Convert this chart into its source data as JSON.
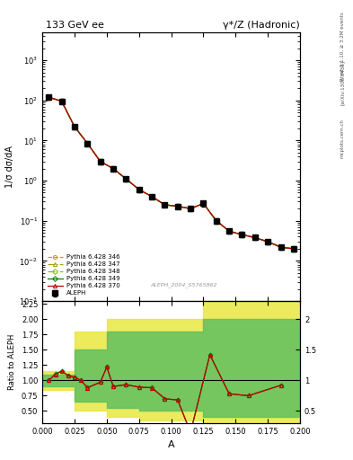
{
  "title_left": "133 GeV ee",
  "title_right": "γ*/Z (Hadronic)",
  "ylabel_main": "1/σ dσ/dA",
  "ylabel_ratio": "Ratio to ALEPH",
  "xlabel": "A",
  "watermark": "ALEPH_2004_S5765862",
  "rivet_label": "Rivet 3.1.10, ≥ 3.2M events",
  "arxiv_label": "[arXiv:1306.3436]",
  "mcplots_label": "mcplots.cern.ch",
  "aleph_x": [
    0.005,
    0.015,
    0.025,
    0.035,
    0.045,
    0.055,
    0.065,
    0.075,
    0.085,
    0.095,
    0.105,
    0.115,
    0.125,
    0.135,
    0.145,
    0.155,
    0.165,
    0.175,
    0.185,
    0.195
  ],
  "aleph_y": [
    120.0,
    95.0,
    22.0,
    8.5,
    3.0,
    2.0,
    1.1,
    0.6,
    0.4,
    0.25,
    0.23,
    0.2,
    0.27,
    0.1,
    0.055,
    0.045,
    0.038,
    0.03,
    0.022,
    0.02
  ],
  "aleph_yerr": [
    15.0,
    12.0,
    3.0,
    1.0,
    0.4,
    0.25,
    0.15,
    0.08,
    0.05,
    0.03,
    0.03,
    0.03,
    0.04,
    0.015,
    0.008,
    0.007,
    0.005,
    0.004,
    0.003,
    0.003
  ],
  "mc_x": [
    0.005,
    0.015,
    0.025,
    0.035,
    0.045,
    0.055,
    0.065,
    0.075,
    0.085,
    0.095,
    0.105,
    0.115,
    0.125,
    0.135,
    0.145,
    0.155,
    0.165,
    0.175,
    0.185,
    0.195
  ],
  "mc_y_346": [
    120.0,
    95.0,
    22.0,
    8.5,
    3.0,
    2.0,
    1.1,
    0.6,
    0.4,
    0.25,
    0.23,
    0.2,
    0.27,
    0.1,
    0.055,
    0.045,
    0.038,
    0.03,
    0.022,
    0.02
  ],
  "mc_y_347": [
    120.0,
    95.0,
    22.0,
    8.5,
    3.0,
    2.0,
    1.1,
    0.6,
    0.4,
    0.25,
    0.23,
    0.2,
    0.27,
    0.1,
    0.055,
    0.045,
    0.038,
    0.03,
    0.022,
    0.02
  ],
  "mc_y_348": [
    120.0,
    95.0,
    22.0,
    8.5,
    3.0,
    2.0,
    1.1,
    0.6,
    0.4,
    0.25,
    0.23,
    0.2,
    0.27,
    0.1,
    0.055,
    0.045,
    0.038,
    0.03,
    0.022,
    0.02
  ],
  "mc_y_349": [
    120.0,
    95.0,
    22.0,
    8.5,
    3.0,
    2.0,
    1.1,
    0.6,
    0.4,
    0.25,
    0.23,
    0.2,
    0.27,
    0.1,
    0.055,
    0.045,
    0.038,
    0.03,
    0.022,
    0.02
  ],
  "mc_y_370": [
    120.0,
    95.0,
    22.0,
    8.5,
    3.0,
    2.0,
    1.1,
    0.6,
    0.4,
    0.25,
    0.23,
    0.2,
    0.27,
    0.1,
    0.055,
    0.045,
    0.038,
    0.03,
    0.022,
    0.02
  ],
  "ratio_x": [
    0.005,
    0.01,
    0.015,
    0.02,
    0.025,
    0.03,
    0.035,
    0.04,
    0.045,
    0.05,
    0.055,
    0.06,
    0.065,
    0.07,
    0.075,
    0.08,
    0.085,
    0.09,
    0.095,
    0.1,
    0.105,
    0.11,
    0.115,
    0.125,
    0.135,
    0.145,
    0.155,
    0.165,
    0.175,
    0.185,
    0.195
  ],
  "ratio_y_349": [
    1.0,
    1.1,
    1.15,
    1.1,
    1.05,
    1.02,
    0.88,
    0.95,
    1.0,
    1.25,
    0.92,
    0.95,
    0.92,
    0.9,
    0.88,
    0.85,
    0.85,
    0.72,
    0.72,
    0.7,
    0.65,
    0.15,
    1.4,
    1.4,
    0.78,
    0.78,
    0.75,
    0.75,
    0.92,
    0.92,
    0.92
  ],
  "ratio_y_370": [
    0.85,
    1.0,
    1.1,
    1.15,
    1.1,
    1.05,
    1.02,
    0.88,
    0.95,
    1.0,
    1.25,
    0.92,
    0.95,
    0.92,
    0.9,
    0.88,
    0.85,
    0.85,
    0.72,
    0.72,
    0.7,
    0.65,
    0.15,
    1.4,
    1.4,
    0.78,
    0.78,
    0.75,
    0.75,
    0.92,
    0.92
  ],
  "band_yellow_x": [
    0.0,
    0.025,
    0.025,
    0.05,
    0.05,
    0.075,
    0.075,
    0.1,
    0.1,
    0.125,
    0.125,
    0.2
  ],
  "band_yellow_lo": [
    0.85,
    0.85,
    0.5,
    0.5,
    0.5,
    0.5,
    0.5,
    0.5,
    0.5,
    0.5,
    0.3,
    0.3
  ],
  "band_yellow_hi": [
    1.15,
    1.15,
    1.8,
    1.8,
    2.0,
    2.0,
    2.0,
    2.0,
    2.0,
    2.0,
    2.0,
    2.0
  ],
  "band_green_x": [
    0.0,
    0.025,
    0.025,
    0.05,
    0.05,
    0.075,
    0.075,
    0.1,
    0.1,
    0.125,
    0.125,
    0.2
  ],
  "band_green_lo": [
    0.9,
    0.9,
    0.65,
    0.65,
    0.65,
    0.65,
    0.65,
    0.65,
    0.65,
    0.65,
    0.4,
    0.4
  ],
  "band_green_hi": [
    1.1,
    1.1,
    1.5,
    1.5,
    1.8,
    1.8,
    1.8,
    1.8,
    1.8,
    1.8,
    1.8,
    1.8
  ],
  "color_346": "#c8a000",
  "color_347": "#a0a000",
  "color_348": "#80c000",
  "color_349": "#008000",
  "color_370": "#c00000",
  "color_aleph": "#000000",
  "color_yellow_band": "#e8e840",
  "color_green_band": "#60c060",
  "ylim_main": [
    0.001,
    5000
  ],
  "ylim_ratio": [
    0.3,
    2.3
  ],
  "xlim": [
    0.0,
    0.2
  ]
}
